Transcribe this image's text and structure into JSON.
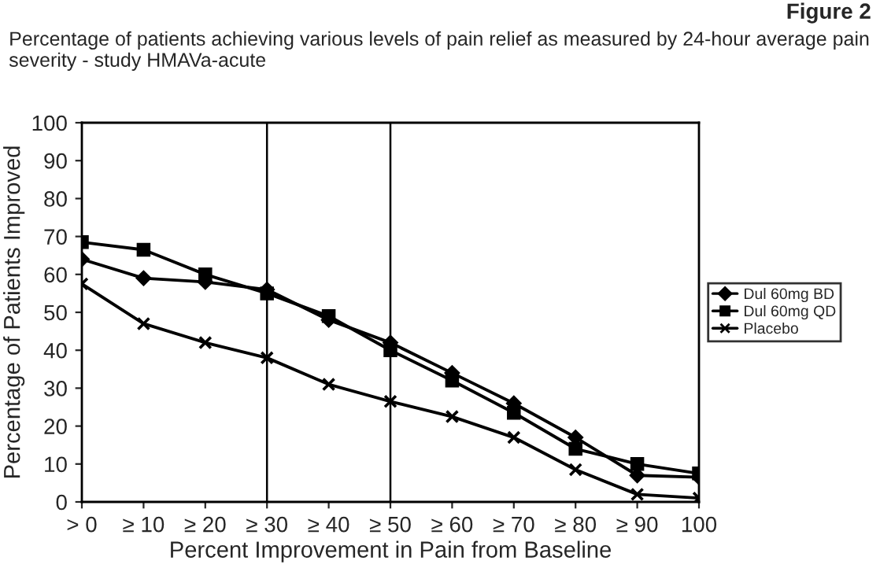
{
  "chart_data": {
    "type": "line",
    "title": "Percentage of patients achieving various levels of pain relief as measured by 24-hour average pain severity - study HMAVa-acute",
    "annotations": [
      "Figure 2"
    ],
    "xlabel": "Percent Improvement in Pain from Baseline",
    "ylabel": "Percentage of Patients Improved",
    "categories": [
      "> 0",
      "≥ 10",
      "≥ 20",
      "≥ 30",
      "≥ 40",
      "≥ 50",
      "≥ 60",
      "≥ 70",
      "≥ 80",
      "≥ 90",
      "100"
    ],
    "series": [
      {
        "name": "Dul 60mg BD",
        "color": "#000000",
        "marker": "diamond",
        "values": [
          64,
          59,
          58,
          56,
          48,
          42,
          34,
          26,
          17,
          7,
          6.5
        ]
      },
      {
        "name": "Dul 60mg QD",
        "color": "#000000",
        "marker": "square",
        "values": [
          68.5,
          66.5,
          60,
          55,
          49,
          40,
          32,
          23.5,
          14,
          10,
          7.5
        ]
      },
      {
        "name": "Placebo",
        "color": "#000000",
        "marker": "cross",
        "values": [
          57.5,
          47,
          42,
          38,
          31,
          26.5,
          22.5,
          17,
          8.5,
          2,
          1
        ]
      }
    ],
    "ylim": [
      0,
      100
    ],
    "yticks": [
      0,
      10,
      20,
      30,
      40,
      50,
      60,
      70,
      80,
      90,
      100
    ],
    "ref_lines": [
      {
        "axis": "x",
        "value": "≥ 30",
        "color": "#000000"
      },
      {
        "axis": "x",
        "value": "≥ 50",
        "color": "#000000"
      }
    ],
    "grid": false,
    "legend": "right",
    "line_style": "solid"
  }
}
